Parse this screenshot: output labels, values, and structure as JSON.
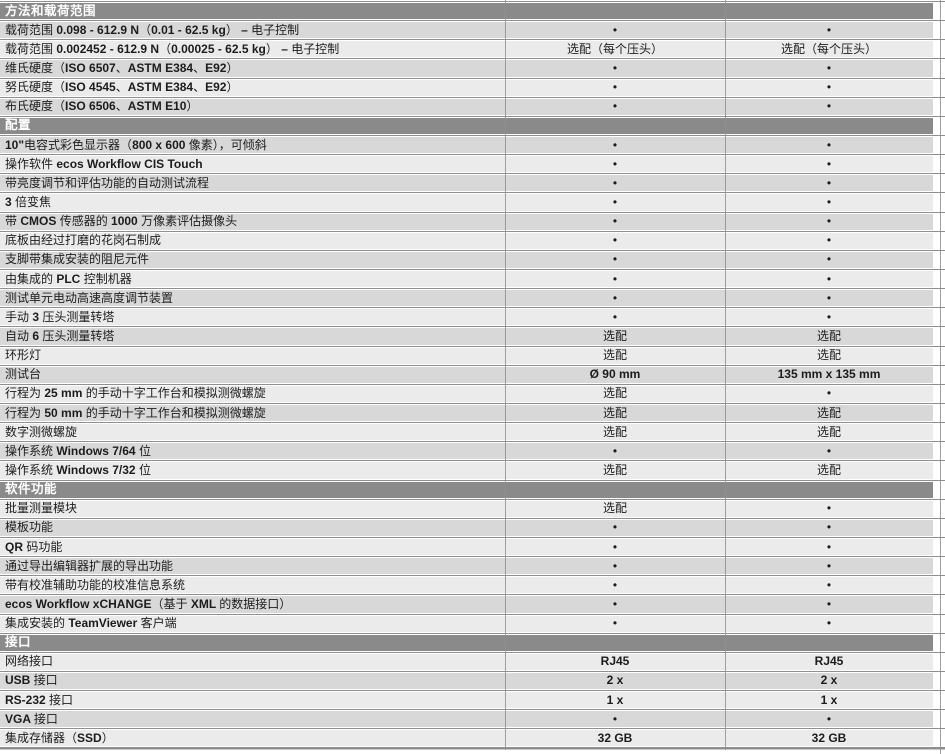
{
  "colors": {
    "section_header_bg": "#8a8a8a",
    "section_header_text": "#ffffff",
    "row_dark_bg": "#d8d8d8",
    "row_light_bg": "#ebebeb",
    "grid_line": "#8f8f8f",
    "text": "#1c1c1c"
  },
  "table": {
    "rows": [
      {
        "type": "section",
        "label": "方法和载荷范围"
      },
      {
        "type": "data",
        "label": "载荷范围 0.098 - 612.9 N（0.01 - 62.5 kg） – 电子控制",
        "values": [
          "•",
          "•"
        ]
      },
      {
        "type": "data",
        "label": "载荷范围 0.002452 - 612.9 N（0.00025 - 62.5 kg） – 电子控制",
        "values": [
          "选配（每个压头）",
          "选配（每个压头）"
        ]
      },
      {
        "type": "data",
        "label": "维氏硬度（ISO 6507、ASTM E384、E92）",
        "values": [
          "•",
          "•"
        ]
      },
      {
        "type": "data",
        "label": "努氏硬度（ISO 4545、ASTM E384、E92）",
        "values": [
          "•",
          "•"
        ]
      },
      {
        "type": "data",
        "label": "布氏硬度（ISO 6506、ASTM E10）",
        "values": [
          "•",
          "•"
        ]
      },
      {
        "type": "section",
        "label": "配置"
      },
      {
        "type": "data",
        "label": "10\"电容式彩色显示器（800 x 600 像素），可倾斜",
        "values": [
          "•",
          "•"
        ]
      },
      {
        "type": "data",
        "label": "操作软件 ecos Workflow CIS Touch",
        "values": [
          "•",
          "•"
        ]
      },
      {
        "type": "data",
        "label": "带亮度调节和评估功能的自动测试流程",
        "values": [
          "•",
          "•"
        ]
      },
      {
        "type": "data",
        "label": "3 倍变焦",
        "values": [
          "•",
          "•"
        ]
      },
      {
        "type": "data",
        "label": "带 CMOS 传感器的 1000 万像素评估摄像头",
        "values": [
          "•",
          "•"
        ]
      },
      {
        "type": "data",
        "label": "底板由经过打磨的花岗石制成",
        "values": [
          "•",
          "•"
        ]
      },
      {
        "type": "data",
        "label": "支脚带集成安装的阻尼元件",
        "values": [
          "•",
          "•"
        ]
      },
      {
        "type": "data",
        "label": "由集成的 PLC 控制机器",
        "values": [
          "•",
          "•"
        ]
      },
      {
        "type": "data",
        "label": "测试单元电动高速高度调节装置",
        "values": [
          "•",
          "•"
        ]
      },
      {
        "type": "data",
        "label": "手动 3 压头测量转塔",
        "values": [
          "•",
          "•"
        ]
      },
      {
        "type": "data",
        "label": "自动 6 压头测量转塔",
        "values": [
          "选配",
          "选配"
        ]
      },
      {
        "type": "data",
        "label": "环形灯",
        "values": [
          "选配",
          "选配"
        ]
      },
      {
        "type": "data",
        "label": "测试台",
        "values": [
          "Ø 90 mm",
          "135 mm x 135 mm"
        ]
      },
      {
        "type": "data",
        "label": "行程为 25 mm 的手动十字工作台和模拟测微螺旋",
        "values": [
          "选配",
          "•"
        ]
      },
      {
        "type": "data",
        "label": "行程为 50 mm 的手动十字工作台和模拟测微螺旋",
        "values": [
          "选配",
          "选配"
        ]
      },
      {
        "type": "data",
        "label": "数字测微螺旋",
        "values": [
          "选配",
          "选配"
        ]
      },
      {
        "type": "data",
        "label": "操作系统 Windows 7/64 位",
        "values": [
          "•",
          "•"
        ]
      },
      {
        "type": "data",
        "label": "操作系统 Windows 7/32 位",
        "values": [
          "选配",
          "选配"
        ]
      },
      {
        "type": "section",
        "label": "软件功能"
      },
      {
        "type": "data",
        "label": "批量测量模块",
        "values": [
          "选配",
          "•"
        ]
      },
      {
        "type": "data",
        "label": "模板功能",
        "values": [
          "•",
          "•"
        ]
      },
      {
        "type": "data",
        "label": "QR 码功能",
        "values": [
          "•",
          "•"
        ]
      },
      {
        "type": "data",
        "label": "通过导出编辑器扩展的导出功能",
        "values": [
          "•",
          "•"
        ]
      },
      {
        "type": "data",
        "label": "带有校准辅助功能的校准信息系统",
        "values": [
          "•",
          "•"
        ]
      },
      {
        "type": "data",
        "label": "ecos Workflow xCHANGE（基于 XML 的数据接口）",
        "values": [
          "•",
          "•"
        ]
      },
      {
        "type": "data",
        "label": "集成安装的 TeamViewer 客户端",
        "values": [
          "•",
          "•"
        ]
      },
      {
        "type": "section",
        "label": "接口"
      },
      {
        "type": "data",
        "label": "网络接口",
        "values": [
          "RJ45",
          "RJ45"
        ]
      },
      {
        "type": "data",
        "label": "USB 接口",
        "values": [
          "2 x",
          "2 x"
        ]
      },
      {
        "type": "data",
        "label": "RS-232 接口",
        "values": [
          "1 x",
          "1 x"
        ]
      },
      {
        "type": "data",
        "label": "VGA 接口",
        "values": [
          "•",
          "•"
        ]
      },
      {
        "type": "data",
        "label": "集成存储器（SSD）",
        "values": [
          "32 GB",
          "32 GB"
        ]
      }
    ]
  }
}
